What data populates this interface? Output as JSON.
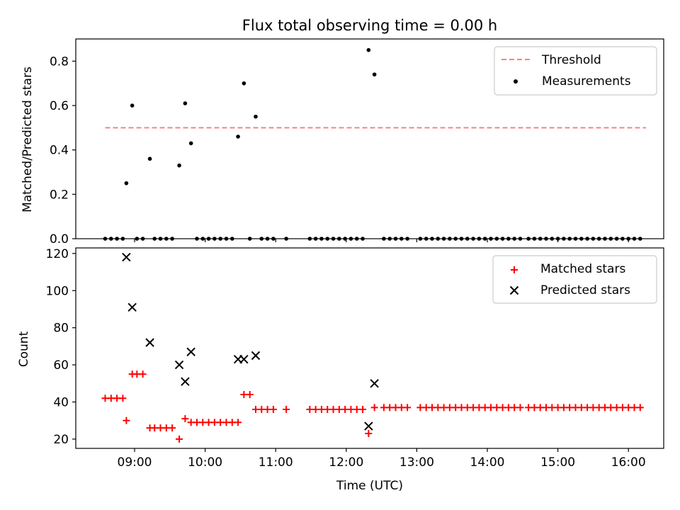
{
  "chart_data": [
    {
      "type": "scatter",
      "title": "Flux total observing time = 0.00 h",
      "xlabel": "",
      "ylabel": "Matched/Predicted stars",
      "xlim": [
        "08:10",
        "16:30"
      ],
      "ylim": [
        0,
        0.9
      ],
      "yticks": [
        0.0,
        0.2,
        0.4,
        0.6,
        0.8
      ],
      "ytick_labels": [
        "0.0",
        "0.2",
        "0.4",
        "0.6",
        "0.8"
      ],
      "grid": false,
      "legend_position": "top-right",
      "threshold": {
        "name": "Threshold",
        "value": 0.5,
        "x_range": [
          "08:35",
          "16:15"
        ],
        "color": "#ff7f7f",
        "style": "dashed"
      },
      "series": [
        {
          "name": "Measurements",
          "marker": "dot",
          "color": "#000000",
          "points": [
            [
              "08:35",
              0
            ],
            [
              "08:40",
              0
            ],
            [
              "08:45",
              0
            ],
            [
              "08:50",
              0
            ],
            [
              "08:53",
              0.25
            ],
            [
              "08:58",
              0.6
            ],
            [
              "09:02",
              0
            ],
            [
              "09:07",
              0
            ],
            [
              "09:13",
              0.36
            ],
            [
              "09:17",
              0
            ],
            [
              "09:22",
              0
            ],
            [
              "09:27",
              0
            ],
            [
              "09:32",
              0
            ],
            [
              "09:38",
              0.33
            ],
            [
              "09:43",
              0.61
            ],
            [
              "09:48",
              0.43
            ],
            [
              "09:53",
              0
            ],
            [
              "09:58",
              0
            ],
            [
              "10:03",
              0
            ],
            [
              "10:08",
              0
            ],
            [
              "10:13",
              0
            ],
            [
              "10:18",
              0
            ],
            [
              "10:23",
              0
            ],
            [
              "10:28",
              0.46
            ],
            [
              "10:33",
              0.7
            ],
            [
              "10:38",
              0
            ],
            [
              "10:43",
              0.55
            ],
            [
              "10:48",
              0
            ],
            [
              "10:53",
              0
            ],
            [
              "10:58",
              0
            ],
            [
              "11:09",
              0
            ],
            [
              "11:29",
              0
            ],
            [
              "11:34",
              0
            ],
            [
              "11:39",
              0
            ],
            [
              "11:44",
              0
            ],
            [
              "11:49",
              0
            ],
            [
              "11:54",
              0
            ],
            [
              "11:59",
              0
            ],
            [
              "12:04",
              0
            ],
            [
              "12:09",
              0
            ],
            [
              "12:14",
              0
            ],
            [
              "12:19",
              0.85
            ],
            [
              "12:24",
              0.74
            ],
            [
              "12:32",
              0
            ],
            [
              "12:37",
              0
            ],
            [
              "12:42",
              0
            ],
            [
              "12:47",
              0
            ],
            [
              "12:52",
              0
            ],
            [
              "13:03",
              0
            ],
            [
              "13:08",
              0
            ],
            [
              "13:13",
              0
            ],
            [
              "13:18",
              0
            ],
            [
              "13:23",
              0
            ],
            [
              "13:28",
              0
            ],
            [
              "13:33",
              0
            ],
            [
              "13:38",
              0
            ],
            [
              "13:43",
              0
            ],
            [
              "13:48",
              0
            ],
            [
              "13:53",
              0
            ],
            [
              "13:58",
              0
            ],
            [
              "14:03",
              0
            ],
            [
              "14:08",
              0
            ],
            [
              "14:13",
              0
            ],
            [
              "14:18",
              0
            ],
            [
              "14:23",
              0
            ],
            [
              "14:28",
              0
            ],
            [
              "14:35",
              0
            ],
            [
              "14:40",
              0
            ],
            [
              "14:45",
              0
            ],
            [
              "14:50",
              0
            ],
            [
              "14:55",
              0
            ],
            [
              "15:00",
              0
            ],
            [
              "15:05",
              0
            ],
            [
              "15:10",
              0
            ],
            [
              "15:15",
              0
            ],
            [
              "15:20",
              0
            ],
            [
              "15:25",
              0
            ],
            [
              "15:30",
              0
            ],
            [
              "15:35",
              0
            ],
            [
              "15:40",
              0
            ],
            [
              "15:45",
              0
            ],
            [
              "15:50",
              0
            ],
            [
              "15:55",
              0
            ],
            [
              "16:00",
              0
            ],
            [
              "16:05",
              0
            ],
            [
              "16:10",
              0
            ]
          ]
        }
      ]
    },
    {
      "type": "scatter",
      "title": "",
      "xlabel": "Time (UTC)",
      "ylabel": "Count",
      "xlim": [
        "08:10",
        "16:30"
      ],
      "xticks": [
        "09:00",
        "10:00",
        "11:00",
        "12:00",
        "13:00",
        "14:00",
        "15:00",
        "16:00"
      ],
      "ylim": [
        15,
        123
      ],
      "yticks": [
        20,
        40,
        60,
        80,
        100,
        120
      ],
      "ytick_labels": [
        "20",
        "40",
        "60",
        "80",
        "100",
        "120"
      ],
      "grid": false,
      "legend_position": "top-right",
      "series": [
        {
          "name": "Matched stars",
          "marker": "plus",
          "color": "#ff0000",
          "points": [
            [
              "08:35",
              42
            ],
            [
              "08:40",
              42
            ],
            [
              "08:45",
              42
            ],
            [
              "08:50",
              42
            ],
            [
              "08:53",
              30
            ],
            [
              "08:58",
              55
            ],
            [
              "09:02",
              55
            ],
            [
              "09:07",
              55
            ],
            [
              "09:13",
              26
            ],
            [
              "09:17",
              26
            ],
            [
              "09:22",
              26
            ],
            [
              "09:27",
              26
            ],
            [
              "09:32",
              26
            ],
            [
              "09:38",
              20
            ],
            [
              "09:43",
              31
            ],
            [
              "09:48",
              29
            ],
            [
              "09:53",
              29
            ],
            [
              "09:58",
              29
            ],
            [
              "10:03",
              29
            ],
            [
              "10:08",
              29
            ],
            [
              "10:13",
              29
            ],
            [
              "10:18",
              29
            ],
            [
              "10:23",
              29
            ],
            [
              "10:28",
              29
            ],
            [
              "10:33",
              44
            ],
            [
              "10:38",
              44
            ],
            [
              "10:43",
              36
            ],
            [
              "10:48",
              36
            ],
            [
              "10:53",
              36
            ],
            [
              "10:58",
              36
            ],
            [
              "11:09",
              36
            ],
            [
              "11:29",
              36
            ],
            [
              "11:34",
              36
            ],
            [
              "11:39",
              36
            ],
            [
              "11:44",
              36
            ],
            [
              "11:49",
              36
            ],
            [
              "11:54",
              36
            ],
            [
              "11:59",
              36
            ],
            [
              "12:04",
              36
            ],
            [
              "12:09",
              36
            ],
            [
              "12:14",
              36
            ],
            [
              "12:19",
              23
            ],
            [
              "12:24",
              37
            ],
            [
              "12:32",
              37
            ],
            [
              "12:37",
              37
            ],
            [
              "12:42",
              37
            ],
            [
              "12:47",
              37
            ],
            [
              "12:52",
              37
            ],
            [
              "13:03",
              37
            ],
            [
              "13:08",
              37
            ],
            [
              "13:13",
              37
            ],
            [
              "13:18",
              37
            ],
            [
              "13:23",
              37
            ],
            [
              "13:28",
              37
            ],
            [
              "13:33",
              37
            ],
            [
              "13:38",
              37
            ],
            [
              "13:43",
              37
            ],
            [
              "13:48",
              37
            ],
            [
              "13:53",
              37
            ],
            [
              "13:58",
              37
            ],
            [
              "14:03",
              37
            ],
            [
              "14:08",
              37
            ],
            [
              "14:13",
              37
            ],
            [
              "14:18",
              37
            ],
            [
              "14:23",
              37
            ],
            [
              "14:28",
              37
            ],
            [
              "14:35",
              37
            ],
            [
              "14:40",
              37
            ],
            [
              "14:45",
              37
            ],
            [
              "14:50",
              37
            ],
            [
              "14:55",
              37
            ],
            [
              "15:00",
              37
            ],
            [
              "15:05",
              37
            ],
            [
              "15:10",
              37
            ],
            [
              "15:15",
              37
            ],
            [
              "15:20",
              37
            ],
            [
              "15:25",
              37
            ],
            [
              "15:30",
              37
            ],
            [
              "15:35",
              37
            ],
            [
              "15:40",
              37
            ],
            [
              "15:45",
              37
            ],
            [
              "15:50",
              37
            ],
            [
              "15:55",
              37
            ],
            [
              "16:00",
              37
            ],
            [
              "16:05",
              37
            ],
            [
              "16:10",
              37
            ]
          ]
        },
        {
          "name": "Predicted stars",
          "marker": "x",
          "color": "#000000",
          "points": [
            [
              "08:53",
              118
            ],
            [
              "08:58",
              91
            ],
            [
              "09:13",
              72
            ],
            [
              "09:38",
              60
            ],
            [
              "09:43",
              51
            ],
            [
              "09:48",
              67
            ],
            [
              "10:28",
              63
            ],
            [
              "10:33",
              63
            ],
            [
              "10:43",
              65
            ],
            [
              "12:19",
              27
            ],
            [
              "12:24",
              50
            ]
          ]
        }
      ]
    }
  ]
}
